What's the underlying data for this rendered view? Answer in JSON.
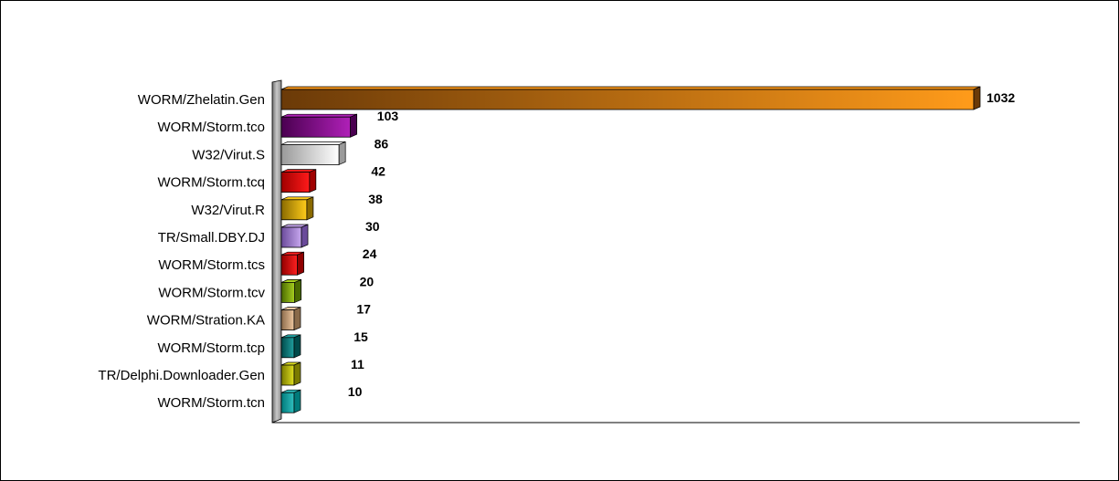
{
  "chart_data": {
    "type": "bar",
    "orientation": "horizontal",
    "title": "",
    "xlabel": "",
    "ylabel": "",
    "grid": false,
    "legend": "none",
    "xlim": [
      0,
      1032
    ],
    "categories": [
      "WORM/Zhelatin.Gen",
      "WORM/Storm.tco",
      "W32/Virut.S",
      "WORM/Storm.tcq",
      "W32/Virut.R",
      "TR/Small.DBY.DJ",
      "WORM/Storm.tcs",
      "WORM/Storm.tcv",
      "WORM/Stration.KA",
      "WORM/Storm.tcp",
      "TR/Delphi.Downloader.Gen",
      "WORM/Storm.tcn"
    ],
    "values": [
      1032,
      103,
      86,
      42,
      38,
      30,
      24,
      20,
      17,
      15,
      11,
      10
    ],
    "colors": [
      [
        "#6b3a08",
        "#ff9b1a"
      ],
      [
        "#4a0050",
        "#b020b8"
      ],
      [
        "#9a9a9a",
        "#ffffff"
      ],
      [
        "#a00000",
        "#ff1a1a"
      ],
      [
        "#8a6a00",
        "#ffcc1a"
      ],
      [
        "#6a4a9a",
        "#c8a8f0"
      ],
      [
        "#900000",
        "#ff2020"
      ],
      [
        "#4a6a00",
        "#a8d020"
      ],
      [
        "#8a6a4a",
        "#f0c8a0"
      ],
      [
        "#004a4a",
        "#20a0a0"
      ],
      [
        "#7a7a00",
        "#e0e020"
      ],
      [
        "#007a7a",
        "#30c0c0"
      ]
    ]
  }
}
